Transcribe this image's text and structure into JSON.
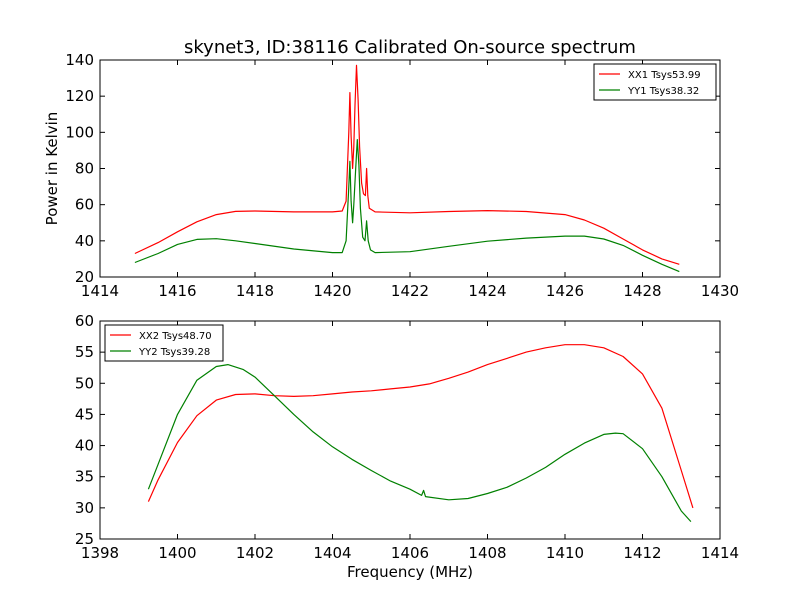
{
  "title": "skynet3, ID:38116 Calibrated On-source spectrum",
  "chart_data": [
    {
      "type": "line",
      "name": "top",
      "xlabel": "",
      "ylabel": "Power in Kelvin",
      "xlim": [
        1414,
        1430
      ],
      "ylim": [
        20,
        140
      ],
      "xticks": [
        1414,
        1416,
        1418,
        1420,
        1422,
        1424,
        1426,
        1428,
        1430
      ],
      "yticks": [
        20,
        40,
        60,
        80,
        100,
        120,
        140
      ],
      "legend": "top-right",
      "series": [
        {
          "name": "XX1 Tsys53.99",
          "color": "#ff0000",
          "points": [
            [
              1414.9,
              33
            ],
            [
              1415.5,
              39
            ],
            [
              1416,
              45
            ],
            [
              1416.5,
              50.5
            ],
            [
              1417,
              54.5
            ],
            [
              1417.5,
              56.3
            ],
            [
              1418,
              56.5
            ],
            [
              1419,
              56
            ],
            [
              1420,
              56
            ],
            [
              1420.25,
              56.5
            ],
            [
              1420.35,
              62
            ],
            [
              1420.42,
              100
            ],
            [
              1420.45,
              122
            ],
            [
              1420.48,
              98
            ],
            [
              1420.52,
              80
            ],
            [
              1420.55,
              92
            ],
            [
              1420.58,
              115
            ],
            [
              1420.62,
              137
            ],
            [
              1420.66,
              118
            ],
            [
              1420.7,
              92
            ],
            [
              1420.75,
              72
            ],
            [
              1420.8,
              66
            ],
            [
              1420.85,
              65
            ],
            [
              1420.88,
              80
            ],
            [
              1420.91,
              65
            ],
            [
              1420.95,
              58
            ],
            [
              1421.1,
              56
            ],
            [
              1422,
              55.5
            ],
            [
              1423,
              56.2
            ],
            [
              1424,
              56.7
            ],
            [
              1425,
              56.2
            ],
            [
              1426,
              54.5
            ],
            [
              1426.5,
              51.5
            ],
            [
              1427,
              47
            ],
            [
              1427.5,
              41
            ],
            [
              1428,
              35
            ],
            [
              1428.5,
              30
            ],
            [
              1428.95,
              27
            ]
          ]
        },
        {
          "name": "YY1 Tsys38.32",
          "color": "#008000",
          "points": [
            [
              1414.9,
              28
            ],
            [
              1415.5,
              33
            ],
            [
              1416,
              38
            ],
            [
              1416.5,
              40.8
            ],
            [
              1417,
              41.2
            ],
            [
              1417.5,
              40
            ],
            [
              1418,
              38.5
            ],
            [
              1419,
              35.5
            ],
            [
              1420,
              33.5
            ],
            [
              1420.25,
              33.5
            ],
            [
              1420.35,
              40
            ],
            [
              1420.42,
              70
            ],
            [
              1420.45,
              84
            ],
            [
              1420.48,
              62
            ],
            [
              1420.52,
              50
            ],
            [
              1420.55,
              60
            ],
            [
              1420.6,
              80
            ],
            [
              1420.64,
              96
            ],
            [
              1420.68,
              82
            ],
            [
              1420.72,
              58
            ],
            [
              1420.78,
              42
            ],
            [
              1420.84,
              40
            ],
            [
              1420.88,
              51
            ],
            [
              1420.92,
              40
            ],
            [
              1420.98,
              35
            ],
            [
              1421.1,
              33.5
            ],
            [
              1422,
              34
            ],
            [
              1423,
              37
            ],
            [
              1424,
              39.8
            ],
            [
              1425,
              41.5
            ],
            [
              1426,
              42.6
            ],
            [
              1426.5,
              42.6
            ],
            [
              1427,
              41
            ],
            [
              1427.5,
              37.5
            ],
            [
              1428,
              32
            ],
            [
              1428.5,
              27
            ],
            [
              1428.95,
              23
            ]
          ]
        }
      ]
    },
    {
      "type": "line",
      "name": "bottom",
      "xlabel": "Frequency (MHz)",
      "ylabel": "",
      "xlim": [
        1398,
        1414
      ],
      "ylim": [
        25,
        60
      ],
      "xticks": [
        1398,
        1400,
        1402,
        1404,
        1406,
        1408,
        1410,
        1412,
        1414
      ],
      "yticks": [
        25,
        30,
        35,
        40,
        45,
        50,
        55,
        60
      ],
      "legend": "top-left",
      "series": [
        {
          "name": "XX2 Tsys48.70",
          "color": "#ff0000",
          "points": [
            [
              1399.25,
              31
            ],
            [
              1399.5,
              34.5
            ],
            [
              1400,
              40.5
            ],
            [
              1400.5,
              44.8
            ],
            [
              1401,
              47.3
            ],
            [
              1401.5,
              48.2
            ],
            [
              1402,
              48.3
            ],
            [
              1402.5,
              48
            ],
            [
              1403,
              47.9
            ],
            [
              1403.5,
              48
            ],
            [
              1404,
              48.3
            ],
            [
              1404.5,
              48.6
            ],
            [
              1405,
              48.8
            ],
            [
              1405.5,
              49.1
            ],
            [
              1406,
              49.4
            ],
            [
              1406.5,
              49.9
            ],
            [
              1407,
              50.8
            ],
            [
              1407.5,
              51.8
            ],
            [
              1408,
              53
            ],
            [
              1408.5,
              54
            ],
            [
              1409,
              55
            ],
            [
              1409.5,
              55.7
            ],
            [
              1410,
              56.2
            ],
            [
              1410.5,
              56.2
            ],
            [
              1411,
              55.7
            ],
            [
              1411.5,
              54.3
            ],
            [
              1412,
              51.5
            ],
            [
              1412.5,
              46
            ],
            [
              1413,
              36
            ],
            [
              1413.3,
              30
            ]
          ]
        },
        {
          "name": "YY2 Tsys39.28",
          "color": "#008000",
          "points": [
            [
              1399.25,
              33
            ],
            [
              1399.5,
              37
            ],
            [
              1400,
              45
            ],
            [
              1400.5,
              50.5
            ],
            [
              1401,
              52.7
            ],
            [
              1401.3,
              53
            ],
            [
              1401.7,
              52.2
            ],
            [
              1402,
              51
            ],
            [
              1402.5,
              48
            ],
            [
              1403,
              45
            ],
            [
              1403.5,
              42.2
            ],
            [
              1404,
              39.8
            ],
            [
              1404.5,
              37.8
            ],
            [
              1405,
              36
            ],
            [
              1405.5,
              34.3
            ],
            [
              1406,
              33
            ],
            [
              1406.3,
              32
            ],
            [
              1406.35,
              32.8
            ],
            [
              1406.4,
              31.8
            ],
            [
              1407,
              31.3
            ],
            [
              1407.5,
              31.5
            ],
            [
              1408,
              32.3
            ],
            [
              1408.5,
              33.3
            ],
            [
              1409,
              34.8
            ],
            [
              1409.5,
              36.5
            ],
            [
              1410,
              38.6
            ],
            [
              1410.5,
              40.4
            ],
            [
              1411,
              41.8
            ],
            [
              1411.3,
              42
            ],
            [
              1411.5,
              41.9
            ],
            [
              1412,
              39.5
            ],
            [
              1412.5,
              35
            ],
            [
              1413,
              29.5
            ],
            [
              1413.25,
              27.8
            ]
          ]
        }
      ]
    }
  ]
}
